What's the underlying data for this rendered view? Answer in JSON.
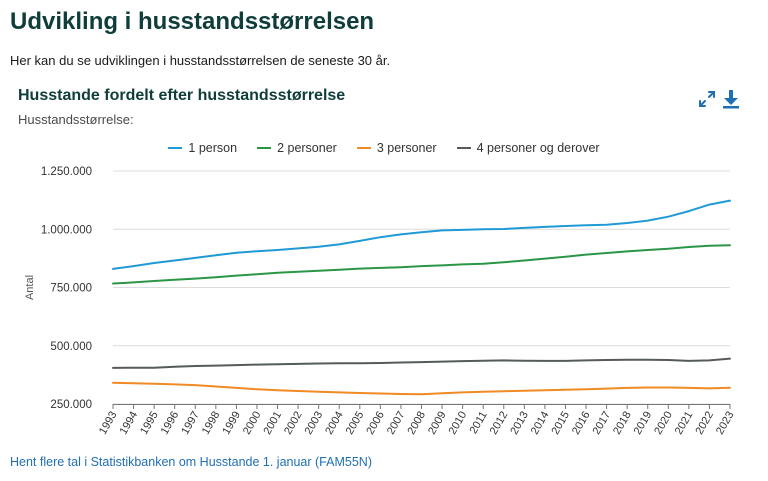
{
  "page": {
    "title": "Udvikling i husstandsstørrelsen",
    "intro": "Her kan du se udviklingen i husstandsstørrelsen de seneste 30 år.",
    "footer_link": "Hent flere tal i Statistikbanken om Husstande 1. januar (FAM55N)"
  },
  "toolbar": {
    "expand_icon": "expand-icon",
    "download_icon": "download-icon",
    "accent": "#1f6fb5"
  },
  "chart_data": {
    "type": "line",
    "title": "Husstande fordelt efter husstandsstørrelse",
    "subtitle": "Husstandsstørrelse:",
    "xlabel": "",
    "ylabel": "Antal",
    "ylim": [
      250000,
      1250000
    ],
    "yticks": [
      250000,
      500000,
      750000,
      1000000,
      1250000
    ],
    "ytick_labels": [
      "250.000",
      "500.000",
      "750.000",
      "1.000.000",
      "1.250.000"
    ],
    "grid": true,
    "legend_position": "top",
    "x": [
      "1993",
      "1994",
      "1995",
      "1996",
      "1997",
      "1998",
      "1999",
      "2000",
      "2001",
      "2002",
      "2003",
      "2004",
      "2005",
      "2006",
      "2007",
      "2008",
      "2009",
      "2010",
      "2011",
      "2012",
      "2013",
      "2014",
      "2015",
      "2016",
      "2017",
      "2018",
      "2019",
      "2020",
      "2021",
      "2022",
      "2023"
    ],
    "series": [
      {
        "name": "1 person",
        "color": "#1f9ad6",
        "values": [
          830000,
          842000,
          855000,
          866000,
          877000,
          888000,
          899000,
          906000,
          911000,
          918000,
          925000,
          935000,
          950000,
          966000,
          978000,
          987000,
          995000,
          997000,
          1000000,
          1001000,
          1006000,
          1010000,
          1014000,
          1017000,
          1019000,
          1027000,
          1037000,
          1054000,
          1078000,
          1106000,
          1123000
        ]
      },
      {
        "name": "2 personer",
        "color": "#2a9646",
        "values": [
          767000,
          772000,
          778000,
          783000,
          788000,
          794000,
          801000,
          807000,
          813000,
          818000,
          822000,
          826000,
          831000,
          834000,
          837000,
          842000,
          845000,
          849000,
          852000,
          858000,
          866000,
          874000,
          882000,
          891000,
          898000,
          905000,
          911000,
          916000,
          924000,
          929000,
          931000
        ]
      },
      {
        "name": "3 personer",
        "color": "#f08a24",
        "values": [
          341000,
          339000,
          337000,
          334000,
          331000,
          325000,
          319000,
          313000,
          309000,
          306000,
          303000,
          300000,
          297000,
          295000,
          293000,
          292000,
          296000,
          300000,
          303000,
          305000,
          307000,
          309000,
          311000,
          313000,
          316000,
          319000,
          321000,
          321000,
          319000,
          317000,
          320000
        ]
      },
      {
        "name": "4 personer og derover",
        "color": "#555c57",
        "values": [
          405000,
          406000,
          406000,
          410000,
          413000,
          415000,
          417000,
          419000,
          421000,
          422000,
          424000,
          425000,
          425000,
          426000,
          428000,
          430000,
          432000,
          434000,
          436000,
          437000,
          436000,
          435000,
          435000,
          437000,
          439000,
          440000,
          440000,
          439000,
          435000,
          437000,
          445000
        ]
      }
    ]
  }
}
